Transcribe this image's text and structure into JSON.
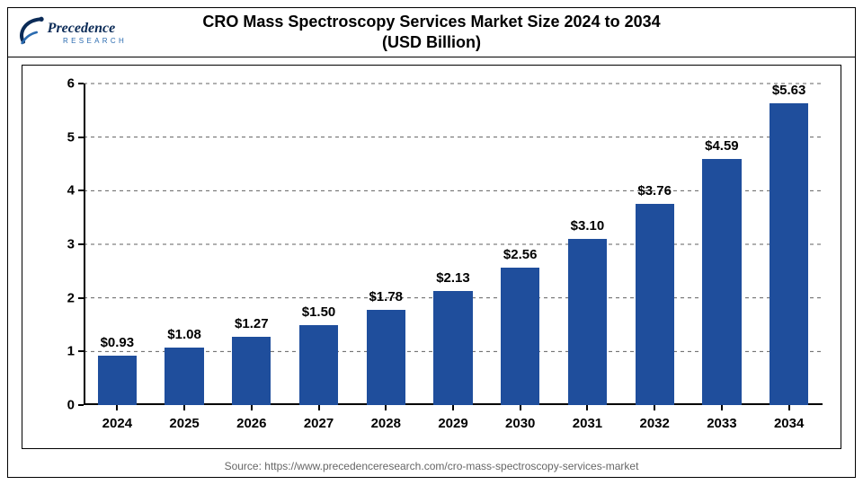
{
  "title_line1": "CRO Mass Spectroscopy Services Market Size 2024 to 2034",
  "title_line2": "(USD Billion)",
  "title_fontsize": 18,
  "logo_text_top": "Precedence",
  "logo_text_bottom": "RESEARCH",
  "logo_color_navy": "#0b2b57",
  "logo_color_blue": "#2a6bb0",
  "chart": {
    "type": "bar",
    "categories": [
      "2024",
      "2025",
      "2026",
      "2027",
      "2028",
      "2029",
      "2030",
      "2031",
      "2032",
      "2033",
      "2034"
    ],
    "values": [
      0.93,
      1.08,
      1.27,
      1.5,
      1.78,
      2.13,
      2.56,
      3.1,
      3.76,
      4.59,
      5.63
    ],
    "value_labels": [
      "$0.93",
      "$1.08",
      "$1.27",
      "$1.50",
      "$1.78",
      "$2.13",
      "$2.56",
      "$3.10",
      "$3.76",
      "$4.59",
      "$5.63"
    ],
    "bar_color": "#1f4e9c",
    "background_color": "#ffffff",
    "grid_color": "#606060",
    "grid_dash": "4 4",
    "axis_color": "#000000",
    "ylim": [
      0,
      6
    ],
    "yticks": [
      0,
      1,
      2,
      3,
      4,
      5,
      6
    ],
    "ytick_labels": [
      "0",
      "1",
      "2",
      "3",
      "4",
      "5",
      "6"
    ],
    "bar_width_ratio": 0.58,
    "value_label_fontsize": 15,
    "tick_label_fontsize": 15,
    "tick_fontweight": "700"
  },
  "source_text": "Source: https://www.precedenceresearch.com/cro-mass-spectroscopy-services-market",
  "source_fontsize": 12,
  "source_color": "#666666"
}
